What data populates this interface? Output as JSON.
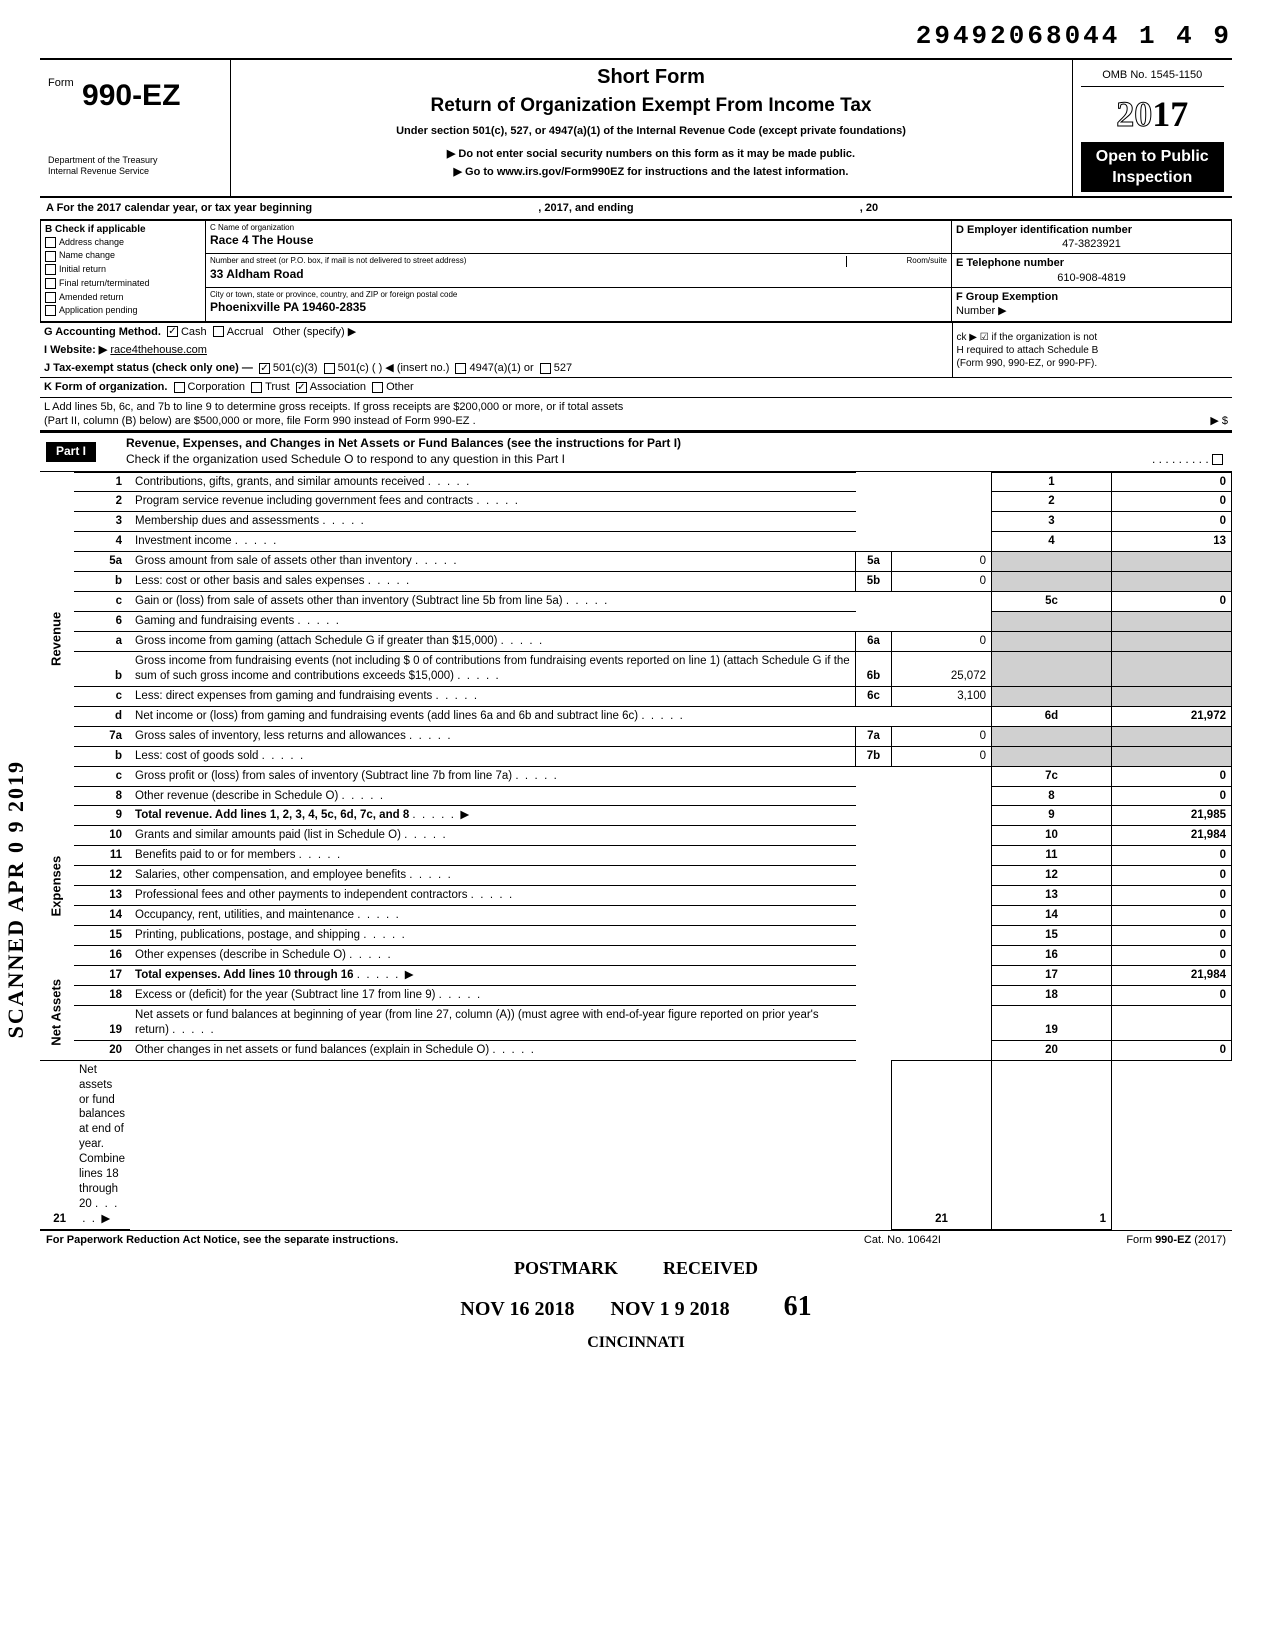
{
  "top_number": "29492068044 1 4    9",
  "header": {
    "form_label": "Form",
    "form_number": "990-EZ",
    "dept1": "Department of the Treasury",
    "dept2": "Internal Revenue Service",
    "short_form": "Short Form",
    "return_title": "Return of Organization Exempt From Income Tax",
    "under_section": "Under section 501(c), 527, or 4947(a)(1) of the Internal Revenue Code (except private foundations)",
    "notice1": "▶ Do not enter social security numbers on this form as it may be made public.",
    "notice2": "▶ Go to www.irs.gov/Form990EZ for instructions and the latest information.",
    "omb": "OMB No. 1545-1150",
    "year_outline": "20",
    "year_bold": "17",
    "open_public1": "Open to Public",
    "open_public2": "Inspection"
  },
  "rowA": {
    "prefix": "A  For the 2017 calendar year, or tax year beginning",
    "mid": ", 2017, and ending",
    "end": ", 20"
  },
  "sectionB": {
    "header": "B  Check if applicable",
    "items": [
      "Address change",
      "Name change",
      "Initial return",
      "Final return/terminated",
      "Amended return",
      "Application pending"
    ]
  },
  "sectionC": {
    "name_label": "C  Name of organization",
    "name": "Race 4 The House",
    "street_label": "Number and street (or P.O. box, if mail is not delivered to street address)",
    "room_label": "Room/suite",
    "street": "33 Aldham Road",
    "city_label": "City or town, state or province, country, and ZIP or foreign postal code",
    "city": "Phoenixville PA 19460-2835"
  },
  "sectionD": {
    "ein_label": "D Employer identification number",
    "ein": "47-3823921",
    "phone_label": "E Telephone number",
    "phone": "610-908-4819",
    "group_label": "F Group Exemption",
    "group_label2": "Number ▶"
  },
  "rowG": "G  Accounting Method.",
  "rowG_cash": "Cash",
  "rowG_accrual": "Accrual",
  "rowG_other": "Other (specify) ▶",
  "rowG_right": "ck ▶ ☑ if the organization is not",
  "rowH": "H  required to attach Schedule B",
  "rowH2": "(Form 990, 990-EZ, or 990-PF).",
  "rowI": "I   Website: ▶",
  "website": "race4thehouse.com",
  "rowJ": "J  Tax-exempt status (check only one) —",
  "j_501c3": "501(c)(3)",
  "j_501c": "501(c) (",
  "j_insert": ") ◀ (insert no.)",
  "j_4947": "4947(a)(1) or",
  "j_527": "527",
  "rowK": "K  Form of organization.",
  "k_corp": "Corporation",
  "k_trust": "Trust",
  "k_assoc": "Association",
  "k_other": "Other",
  "rowL1": "L  Add lines 5b, 6c, and 7b to line 9 to determine gross receipts. If gross receipts are $200,000 or more, or if total assets",
  "rowL2": "(Part II, column (B) below) are $500,000 or more, file Form 990 instead of Form 990-EZ .",
  "rowL_amt": "▶    $",
  "part1": {
    "label": "Part I",
    "title": "Revenue, Expenses, and Changes in Net Assets or Fund Balances (see the instructions for Part I)",
    "check": "Check if the organization used Schedule O to respond to any question in this Part I"
  },
  "side_labels": {
    "revenue": "Revenue",
    "expenses": "Expenses",
    "netassets": "Net Assets"
  },
  "scanned": "SCANNED APR 0 9 2019",
  "lines": [
    {
      "n": "1",
      "desc": "Contributions, gifts, grants, and similar amounts received",
      "box": "1",
      "val": "0"
    },
    {
      "n": "2",
      "desc": "Program service revenue including government fees and contracts",
      "box": "2",
      "val": "0"
    },
    {
      "n": "3",
      "desc": "Membership dues and assessments",
      "box": "3",
      "val": "0"
    },
    {
      "n": "4",
      "desc": "Investment income",
      "box": "4",
      "val": "13"
    },
    {
      "n": "5a",
      "desc": "Gross amount from sale of assets other than inventory",
      "ibox": "5a",
      "ival": "0"
    },
    {
      "n": "b",
      "desc": "Less: cost or other basis and sales expenses",
      "ibox": "5b",
      "ival": "0"
    },
    {
      "n": "c",
      "desc": "Gain or (loss) from sale of assets other than inventory (Subtract line 5b from line 5a)",
      "box": "5c",
      "val": "0"
    },
    {
      "n": "6",
      "desc": "Gaming and fundraising events"
    },
    {
      "n": "a",
      "desc": "Gross income from gaming (attach Schedule G if greater than $15,000)",
      "ibox": "6a",
      "ival": "0"
    },
    {
      "n": "b",
      "desc": "Gross income from fundraising events (not including  $                    0 of contributions from fundraising events reported on line 1) (attach Schedule G if the sum of such gross income and contributions exceeds $15,000)",
      "ibox": "6b",
      "ival": "25,072"
    },
    {
      "n": "c",
      "desc": "Less: direct expenses from gaming and fundraising events",
      "ibox": "6c",
      "ival": "3,100"
    },
    {
      "n": "d",
      "desc": "Net income or (loss) from gaming and fundraising events (add lines 6a and 6b and subtract line 6c)",
      "box": "6d",
      "val": "21,972"
    },
    {
      "n": "7a",
      "desc": "Gross sales of inventory, less returns and allowances",
      "ibox": "7a",
      "ival": "0"
    },
    {
      "n": "b",
      "desc": "Less: cost of goods sold",
      "ibox": "7b",
      "ival": "0"
    },
    {
      "n": "c",
      "desc": "Gross profit or (loss) from sales of inventory (Subtract line 7b from line 7a)",
      "box": "7c",
      "val": "0"
    },
    {
      "n": "8",
      "desc": "Other revenue (describe in Schedule O)",
      "box": "8",
      "val": "0"
    },
    {
      "n": "9",
      "desc": "Total revenue. Add lines 1, 2, 3, 4, 5c, 6d, 7c, and 8",
      "box": "9",
      "val": "21,985",
      "arrow": true,
      "bold": true
    },
    {
      "n": "10",
      "desc": "Grants and similar amounts paid (list in Schedule O)",
      "box": "10",
      "val": "21,984"
    },
    {
      "n": "11",
      "desc": "Benefits paid to or for members",
      "box": "11",
      "val": "0"
    },
    {
      "n": "12",
      "desc": "Salaries, other compensation, and employee benefits",
      "box": "12",
      "val": "0"
    },
    {
      "n": "13",
      "desc": "Professional fees and other payments to independent contractors",
      "box": "13",
      "val": "0"
    },
    {
      "n": "14",
      "desc": "Occupancy, rent, utilities, and maintenance",
      "box": "14",
      "val": "0"
    },
    {
      "n": "15",
      "desc": "Printing, publications, postage, and shipping",
      "box": "15",
      "val": "0"
    },
    {
      "n": "16",
      "desc": "Other expenses (describe in Schedule O)",
      "box": "16",
      "val": "0"
    },
    {
      "n": "17",
      "desc": "Total expenses. Add lines 10 through 16",
      "box": "17",
      "val": "21,984",
      "arrow": true,
      "bold": true
    },
    {
      "n": "18",
      "desc": "Excess or (deficit) for the year (Subtract line 17 from line 9)",
      "box": "18",
      "val": "0"
    },
    {
      "n": "19",
      "desc": "Net assets or fund balances at beginning of year (from line 27, column (A)) (must agree with end-of-year figure reported on prior year's return)",
      "box": "19",
      "val": ""
    },
    {
      "n": "20",
      "desc": "Other changes in net assets or fund balances (explain in Schedule O)",
      "box": "20",
      "val": "0"
    },
    {
      "n": "21",
      "desc": "Net assets or fund balances at end of year. Combine lines 18 through 20",
      "box": "21",
      "val": "1",
      "arrow": true
    }
  ],
  "footer": {
    "left": "For Paperwork Reduction Act Notice, see the separate instructions.",
    "mid": "Cat. No. 10642I",
    "right": "Form 990-EZ (2017)"
  },
  "stamps": {
    "postmark": "POSTMARK",
    "received": "RECEIVED",
    "date1": "NOV 16  2018",
    "date2": "NOV 1 9 2018",
    "num": "61",
    "cincinnati": "CINCINNATI"
  }
}
